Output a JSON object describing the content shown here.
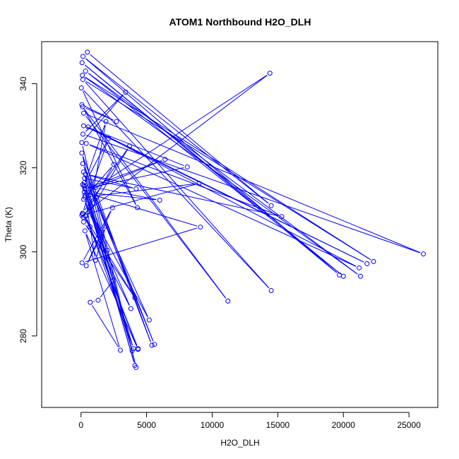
{
  "chart_data": {
    "type": "scatter",
    "title": "ATOM1 Northbound H2O_DLH",
    "xlabel": "H2O_DLH",
    "ylabel": "Theta (K)",
    "xlim": [
      -3000,
      27200
    ],
    "ylim": [
      263,
      350
    ],
    "x_ticks": [
      0,
      5000,
      10000,
      15000,
      20000,
      25000
    ],
    "y_ticks": [
      280,
      300,
      320,
      340
    ],
    "grid": false,
    "connected": true,
    "series_color": "#0000ff",
    "series": [
      {
        "x": [
          480,
          14500,
          150,
          19700,
          80,
          20000,
          350,
          21300,
          100,
          22300,
          150,
          14500,
          30,
          4300,
          60,
          2700,
          120,
          11200,
          200,
          26100,
          150,
          3400,
          60,
          4200,
          60,
          5400,
          130,
          5600,
          200,
          3900,
          120,
          4100,
          260,
          4000,
          370,
          4350,
          680,
          4350,
          300,
          3000,
          700,
          1300,
          2450,
          250,
          2000,
          300,
          1100,
          1900,
          400,
          2400,
          80,
          9100,
          250,
          6400,
          280,
          8100,
          200,
          21800,
          550,
          21200,
          400,
          15300,
          330,
          4200,
          270,
          5200,
          200,
          3800,
          140,
          4100,
          200,
          3700,
          110,
          2100,
          220,
          1900,
          900,
          6000,
          1100,
          14400,
          60,
          9000,
          300,
          2500,
          180
        ],
        "y": [
          347.5,
          311,
          346.5,
          294.5,
          345,
          294.2,
          343,
          294.2,
          342,
          297.7,
          341,
          290.8,
          339,
          310.5,
          335,
          331,
          334.5,
          288.3,
          333,
          299.5,
          328,
          338,
          326,
          272.5,
          323.5,
          277.8,
          321,
          278,
          319,
          276.5,
          316,
          273,
          315.5,
          277,
          308.5,
          277,
          306,
          276.8,
          305,
          276.6,
          288,
          288.5,
          293.2,
          316.5,
          300.4,
          313.5,
          298,
          306.1,
          296.7,
          310.5,
          297.4,
          305.9,
          314.2,
          322,
          315,
          320.2,
          330,
          297.2,
          329.7,
          296.2,
          325.8,
          308.4,
          318.5,
          315,
          317.5,
          283.8,
          312.5,
          286.5,
          309,
          289.1,
          307.1,
          325.2,
          309.2,
          327,
          315.8,
          331,
          314,
          312.3,
          315.3,
          342.5,
          308.7,
          316.3,
          313,
          320.8,
          308.2
        ]
      }
    ]
  }
}
